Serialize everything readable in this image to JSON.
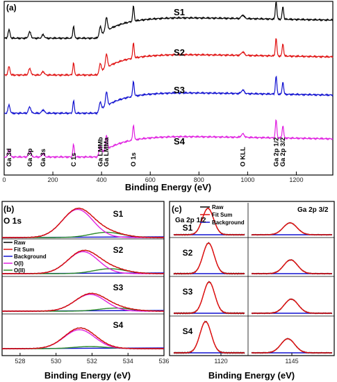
{
  "chart_data": [
    {
      "type": "line",
      "panel": "(a)",
      "xlabel": "Binding Energy (eV)",
      "xlim": [
        0,
        1350
      ],
      "xticks": [
        0,
        200,
        400,
        600,
        800,
        1000,
        1200
      ],
      "series": [
        {
          "name": "S1",
          "color": "#000000"
        },
        {
          "name": "S2",
          "color": "#e01010"
        },
        {
          "name": "S3",
          "color": "#1010d0"
        },
        {
          "name": "S4",
          "color": "#e020e0"
        }
      ],
      "peak_labels": [
        {
          "text": "Ga 3d",
          "x": 20
        },
        {
          "text": "Ga 3p",
          "x": 105
        },
        {
          "text": "Ga 3s",
          "x": 160
        },
        {
          "text": "C 1s",
          "x": 285
        },
        {
          "text": "Ga LMMb",
          "x": 395
        },
        {
          "text": "Ga LMMa",
          "x": 420
        },
        {
          "text": "O 1s",
          "x": 531
        },
        {
          "text": "O KLL",
          "x": 980
        },
        {
          "text": "Ga 2p 1/2",
          "x": 1118
        },
        {
          "text": "Ga 2p 3/2",
          "x": 1145
        }
      ]
    },
    {
      "type": "line",
      "panel": "(b)",
      "title": "O 1s",
      "xlabel": "Binding Energy (eV)",
      "xlim": [
        527,
        536
      ],
      "xticks": [
        528,
        530,
        532,
        534,
        536
      ],
      "samples": [
        {
          "name": "S1",
          "oi_center": 531.2,
          "oii_center": 532.8
        },
        {
          "name": "S2",
          "oi_center": 531.5,
          "oii_center": 533.0
        },
        {
          "name": "S3",
          "oi_center": 531.9,
          "oii_center": 533.3
        },
        {
          "name": "S4",
          "oi_center": 531.3,
          "oii_center": 531.9
        }
      ],
      "legend": [
        {
          "name": "Raw",
          "color": "#000000"
        },
        {
          "name": "Fit Sum",
          "color": "#e01010"
        },
        {
          "name": "Background",
          "color": "#1010d0"
        },
        {
          "name": "O(I)",
          "color": "#e020e0"
        },
        {
          "name": "O(II)",
          "color": "#2a8a2a"
        }
      ]
    },
    {
      "type": "line",
      "panel": "(c)",
      "xlabel": "Binding Energy (eV)",
      "xticks": [
        1120,
        1145
      ],
      "left_label": "Ga 2p 1/2",
      "right_label": "Ga 2p 3/2",
      "samples": [
        "S1",
        "S2",
        "S3",
        "S4"
      ],
      "peaks": {
        "ga2p_1_2": 1117.8,
        "ga2p_3_2": 1144.7
      },
      "legend": [
        {
          "name": "Raw",
          "color": "#000000"
        },
        {
          "name": "Fit Sum",
          "color": "#e01010"
        },
        {
          "name": "Background",
          "color": "#1010d0"
        }
      ]
    }
  ]
}
